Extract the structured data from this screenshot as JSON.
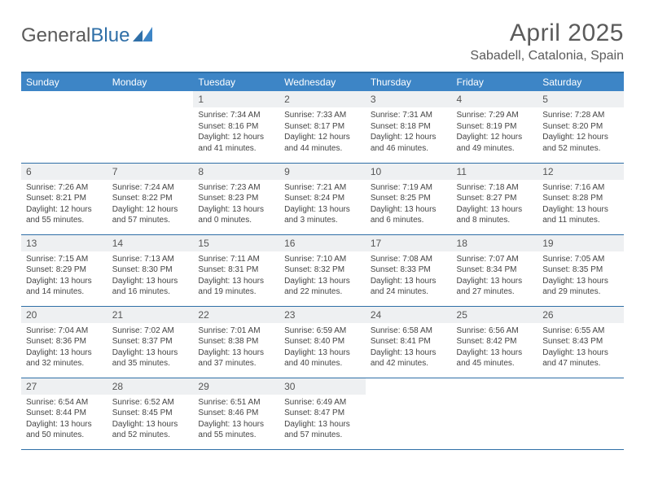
{
  "brand": {
    "part1": "General",
    "part2": "Blue"
  },
  "title": "April 2025",
  "location": "Sabadell, Catalonia, Spain",
  "colors": {
    "header_bg": "#3d85c6",
    "header_text": "#ffffff",
    "border": "#2f6fa7",
    "daynum_bg": "#eef0f2",
    "text": "#444444",
    "title_text": "#5b5b5b"
  },
  "weekdays": [
    "Sunday",
    "Monday",
    "Tuesday",
    "Wednesday",
    "Thursday",
    "Friday",
    "Saturday"
  ],
  "weeks": [
    [
      {
        "n": "",
        "sunrise": "",
        "sunset": "",
        "daylight": ""
      },
      {
        "n": "",
        "sunrise": "",
        "sunset": "",
        "daylight": ""
      },
      {
        "n": "1",
        "sunrise": "7:34 AM",
        "sunset": "8:16 PM",
        "daylight": "12 hours and 41 minutes."
      },
      {
        "n": "2",
        "sunrise": "7:33 AM",
        "sunset": "8:17 PM",
        "daylight": "12 hours and 44 minutes."
      },
      {
        "n": "3",
        "sunrise": "7:31 AM",
        "sunset": "8:18 PM",
        "daylight": "12 hours and 46 minutes."
      },
      {
        "n": "4",
        "sunrise": "7:29 AM",
        "sunset": "8:19 PM",
        "daylight": "12 hours and 49 minutes."
      },
      {
        "n": "5",
        "sunrise": "7:28 AM",
        "sunset": "8:20 PM",
        "daylight": "12 hours and 52 minutes."
      }
    ],
    [
      {
        "n": "6",
        "sunrise": "7:26 AM",
        "sunset": "8:21 PM",
        "daylight": "12 hours and 55 minutes."
      },
      {
        "n": "7",
        "sunrise": "7:24 AM",
        "sunset": "8:22 PM",
        "daylight": "12 hours and 57 minutes."
      },
      {
        "n": "8",
        "sunrise": "7:23 AM",
        "sunset": "8:23 PM",
        "daylight": "13 hours and 0 minutes."
      },
      {
        "n": "9",
        "sunrise": "7:21 AM",
        "sunset": "8:24 PM",
        "daylight": "13 hours and 3 minutes."
      },
      {
        "n": "10",
        "sunrise": "7:19 AM",
        "sunset": "8:25 PM",
        "daylight": "13 hours and 6 minutes."
      },
      {
        "n": "11",
        "sunrise": "7:18 AM",
        "sunset": "8:27 PM",
        "daylight": "13 hours and 8 minutes."
      },
      {
        "n": "12",
        "sunrise": "7:16 AM",
        "sunset": "8:28 PM",
        "daylight": "13 hours and 11 minutes."
      }
    ],
    [
      {
        "n": "13",
        "sunrise": "7:15 AM",
        "sunset": "8:29 PM",
        "daylight": "13 hours and 14 minutes."
      },
      {
        "n": "14",
        "sunrise": "7:13 AM",
        "sunset": "8:30 PM",
        "daylight": "13 hours and 16 minutes."
      },
      {
        "n": "15",
        "sunrise": "7:11 AM",
        "sunset": "8:31 PM",
        "daylight": "13 hours and 19 minutes."
      },
      {
        "n": "16",
        "sunrise": "7:10 AM",
        "sunset": "8:32 PM",
        "daylight": "13 hours and 22 minutes."
      },
      {
        "n": "17",
        "sunrise": "7:08 AM",
        "sunset": "8:33 PM",
        "daylight": "13 hours and 24 minutes."
      },
      {
        "n": "18",
        "sunrise": "7:07 AM",
        "sunset": "8:34 PM",
        "daylight": "13 hours and 27 minutes."
      },
      {
        "n": "19",
        "sunrise": "7:05 AM",
        "sunset": "8:35 PM",
        "daylight": "13 hours and 29 minutes."
      }
    ],
    [
      {
        "n": "20",
        "sunrise": "7:04 AM",
        "sunset": "8:36 PM",
        "daylight": "13 hours and 32 minutes."
      },
      {
        "n": "21",
        "sunrise": "7:02 AM",
        "sunset": "8:37 PM",
        "daylight": "13 hours and 35 minutes."
      },
      {
        "n": "22",
        "sunrise": "7:01 AM",
        "sunset": "8:38 PM",
        "daylight": "13 hours and 37 minutes."
      },
      {
        "n": "23",
        "sunrise": "6:59 AM",
        "sunset": "8:40 PM",
        "daylight": "13 hours and 40 minutes."
      },
      {
        "n": "24",
        "sunrise": "6:58 AM",
        "sunset": "8:41 PM",
        "daylight": "13 hours and 42 minutes."
      },
      {
        "n": "25",
        "sunrise": "6:56 AM",
        "sunset": "8:42 PM",
        "daylight": "13 hours and 45 minutes."
      },
      {
        "n": "26",
        "sunrise": "6:55 AM",
        "sunset": "8:43 PM",
        "daylight": "13 hours and 47 minutes."
      }
    ],
    [
      {
        "n": "27",
        "sunrise": "6:54 AM",
        "sunset": "8:44 PM",
        "daylight": "13 hours and 50 minutes."
      },
      {
        "n": "28",
        "sunrise": "6:52 AM",
        "sunset": "8:45 PM",
        "daylight": "13 hours and 52 minutes."
      },
      {
        "n": "29",
        "sunrise": "6:51 AM",
        "sunset": "8:46 PM",
        "daylight": "13 hours and 55 minutes."
      },
      {
        "n": "30",
        "sunrise": "6:49 AM",
        "sunset": "8:47 PM",
        "daylight": "13 hours and 57 minutes."
      },
      {
        "n": "",
        "sunrise": "",
        "sunset": "",
        "daylight": ""
      },
      {
        "n": "",
        "sunrise": "",
        "sunset": "",
        "daylight": ""
      },
      {
        "n": "",
        "sunrise": "",
        "sunset": "",
        "daylight": ""
      }
    ]
  ],
  "labels": {
    "sunrise": "Sunrise:",
    "sunset": "Sunset:",
    "daylight": "Daylight:"
  }
}
